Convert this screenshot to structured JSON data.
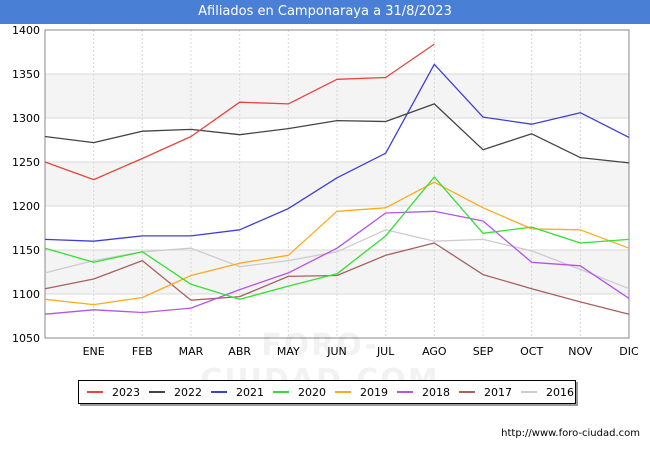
{
  "title": "Afiliados en Camponaraya a 31/8/2023",
  "footer_url": "http://www.foro-ciudad.com",
  "watermark": "FORO-CIUDAD.COM",
  "chart_data": {
    "type": "line",
    "title": "Afiliados en Camponaraya a 31/8/2023",
    "categories": [
      "",
      "ENE",
      "FEB",
      "MAR",
      "ABR",
      "MAY",
      "JUN",
      "JUL",
      "AGO",
      "SEP",
      "OCT",
      "NOV",
      "DIC"
    ],
    "ylim": [
      1050,
      1400
    ],
    "yticks": [
      1050,
      1100,
      1150,
      1200,
      1250,
      1300,
      1350,
      1400
    ],
    "grid": true,
    "legend_position": "bottom",
    "series": [
      {
        "name": "2023",
        "color": "#e8453c",
        "values": [
          1250,
          1230,
          1254,
          1279,
          1318,
          1316,
          1344,
          1346,
          1384,
          null,
          null,
          null,
          null
        ]
      },
      {
        "name": "2022",
        "color": "#444444",
        "values": [
          1279,
          1272,
          1285,
          1287,
          1281,
          1288,
          1297,
          1296,
          1316,
          1264,
          1282,
          1255,
          1249
        ]
      },
      {
        "name": "2021",
        "color": "#3f3fd6",
        "values": [
          1162,
          1160,
          1166,
          1166,
          1173,
          1197,
          1232,
          1260,
          1361,
          1301,
          1293,
          1306,
          1278
        ]
      },
      {
        "name": "2020",
        "color": "#33e033",
        "values": [
          1152,
          1136,
          1148,
          1111,
          1094,
          1109,
          1123,
          1166,
          1233,
          1169,
          1176,
          1158,
          1162
        ]
      },
      {
        "name": "2019",
        "color": "#ffaa1d",
        "values": [
          1094,
          1088,
          1096,
          1121,
          1135,
          1144,
          1194,
          1198,
          1227,
          1198,
          1174,
          1173,
          1152
        ]
      },
      {
        "name": "2018",
        "color": "#b355e8",
        "values": [
          1077,
          1082,
          1079,
          1084,
          1105,
          1124,
          1152,
          1192,
          1194,
          1183,
          1136,
          1132,
          1095
        ]
      },
      {
        "name": "2017",
        "color": "#a86060",
        "values": [
          1106,
          1117,
          1138,
          1093,
          1097,
          1120,
          1121,
          1144,
          1158,
          1122,
          1106,
          1091,
          1077
        ]
      },
      {
        "name": "2016",
        "color": "#cccccc",
        "values": [
          1124,
          1138,
          1148,
          1152,
          1131,
          1138,
          1148,
          1173,
          1160,
          1162,
          1149,
          1128,
          1106
        ]
      }
    ]
  }
}
